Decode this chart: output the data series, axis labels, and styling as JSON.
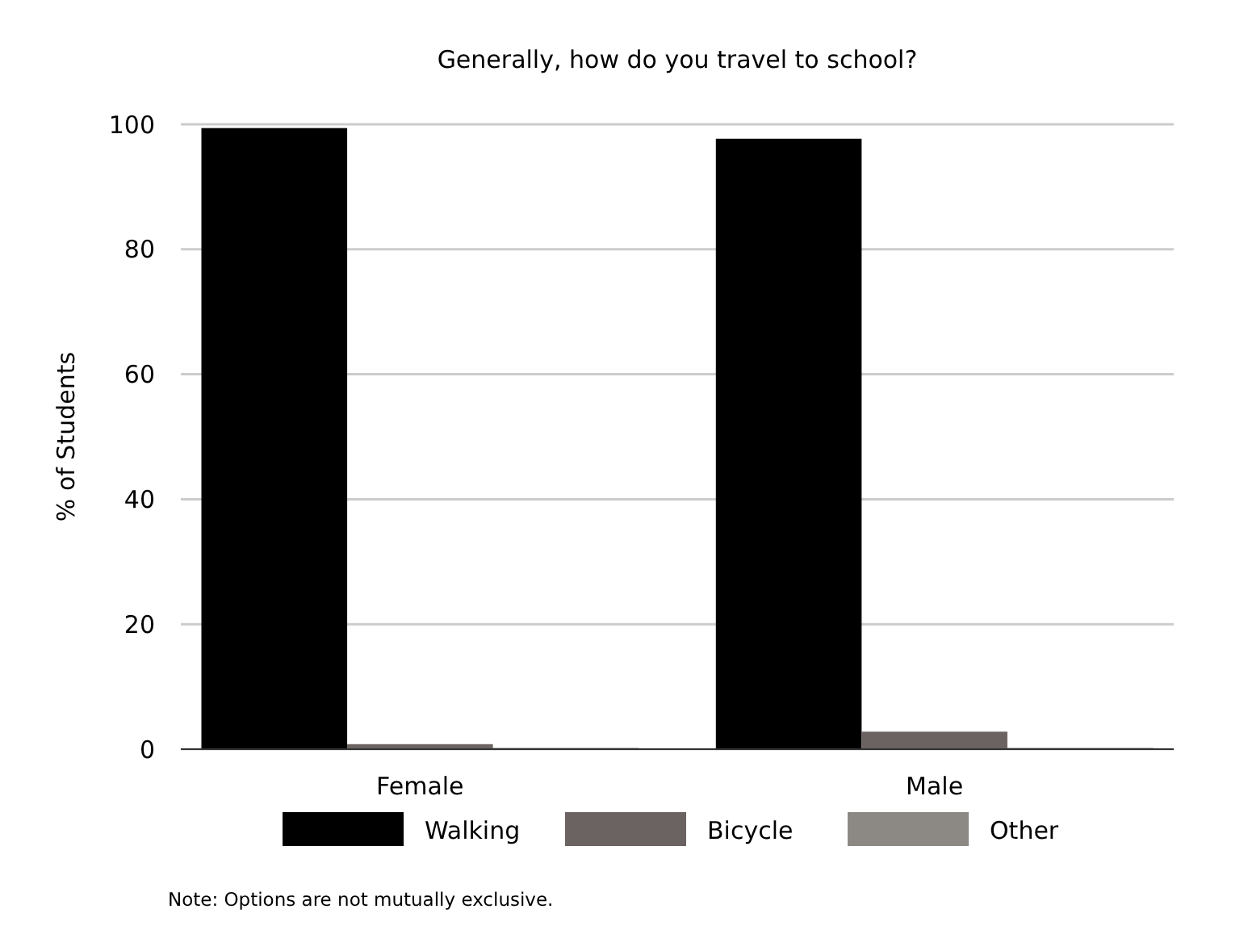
{
  "chart_data": {
    "type": "bar",
    "title": "Generally, how do you travel to school?",
    "ylabel": "% of Students",
    "categories": [
      "Female",
      "Male"
    ],
    "series": [
      {
        "name": "Walking",
        "color": "#000000",
        "values": [
          99.4,
          97.7
        ]
      },
      {
        "name": "Bicycle",
        "color": "#6b6361",
        "values": [
          0.8,
          2.8
        ]
      },
      {
        "name": "Other",
        "color": "#8c8984",
        "values": [
          0.2,
          0.2
        ]
      }
    ],
    "ylim": [
      0,
      100
    ],
    "yticks": [
      0,
      20,
      40,
      60,
      80,
      100
    ],
    "grid": "y",
    "legend": "bottom",
    "annotations": [
      "Note: Options are not mutually exclusive."
    ]
  }
}
